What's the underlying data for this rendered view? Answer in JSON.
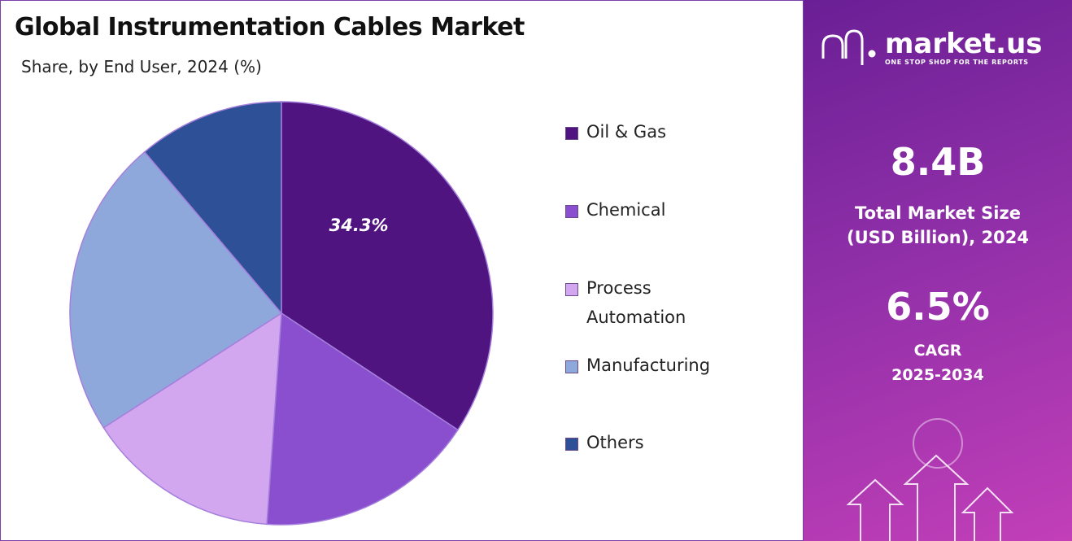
{
  "chart_data": {
    "type": "pie",
    "title": "Global Instrumentation Cables Market",
    "subtitle": "Share, by End User, 2024 (%)",
    "categories": [
      "Oil & Gas",
      "Chemical",
      "Process Automation",
      "Manufacturing",
      "Others"
    ],
    "values": [
      34.3,
      16.8,
      14.8,
      22.9,
      11.2
    ],
    "value_labels": [
      "34.3%",
      null,
      null,
      null,
      null
    ],
    "colors": [
      "#4f1480",
      "#8a4fcf",
      "#d3a7ef",
      "#8fa8dc",
      "#2e5096"
    ],
    "legend": "right"
  },
  "panel": {
    "brand": "market.us",
    "tagline": "ONE STOP SHOP FOR THE REPORTS",
    "market_size": {
      "value": "8.4B",
      "label": [
        "Total Market Size",
        "(USD Billion), 2024"
      ]
    },
    "cagr": {
      "value": "6.5%",
      "label": [
        "CAGR",
        "2025-2034"
      ]
    }
  }
}
